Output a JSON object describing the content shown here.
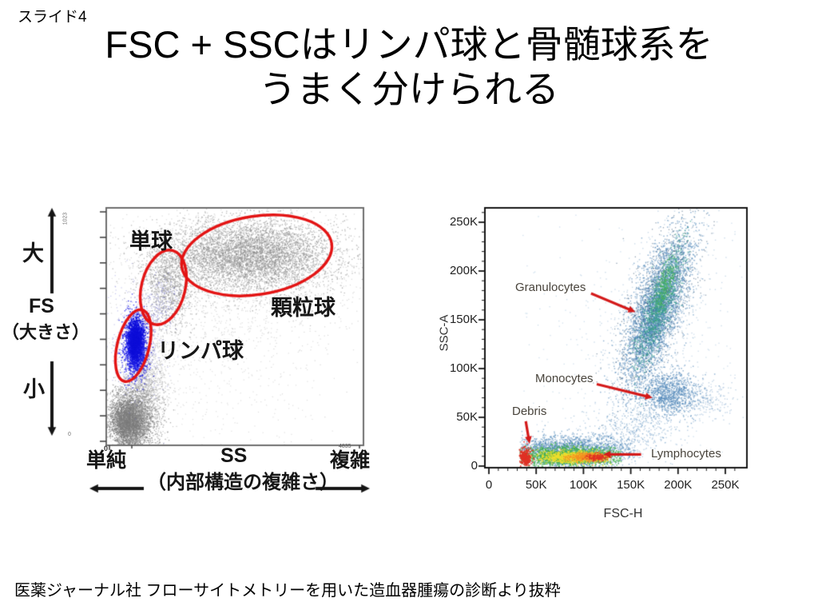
{
  "slide": {
    "label": "スライド4",
    "title_line1": "FSC + SSCはリンパ球と骨髄球系を",
    "title_line2": "うまく分けられる",
    "caption": "医薬ジャーナル社 フローサイトメトリーを用いた造血器腫瘍の診断より抜粋"
  },
  "colors": {
    "ellipse_red": "#e31414",
    "annotation_red": "#d41a1a",
    "lymphocyte_blue": "#1616ee",
    "dot_gray": "#8c8c8c",
    "scatter_blue": "#4e86b8",
    "density_green": "#44b14e",
    "density_yellow": "#f0de2c",
    "density_red": "#e03024"
  },
  "chart_data": [
    {
      "type": "scatter",
      "id": "fs-ss",
      "xlabel": "SS",
      "x_sub_label": "（内部構造の複雑さ）",
      "x_left_label": "単純",
      "x_right_label": "複雑",
      "ylabel": "FS",
      "y_sub_label": "（大きさ）",
      "y_top_label": "大",
      "y_bottom_label": "小",
      "x_min_label": "0",
      "x_max_label": "4835",
      "y_min_label": "0",
      "y_max_label": "1023",
      "xlim": [
        0,
        1
      ],
      "ylim": [
        0,
        1
      ],
      "grid": false,
      "ellipses": [
        {
          "label": "単球",
          "cx": 0.222,
          "cy": 0.665,
          "rx": 0.085,
          "ry": 0.16,
          "rot": 14
        },
        {
          "label": "顆粒球",
          "cx": 0.585,
          "cy": 0.8,
          "rx": 0.295,
          "ry": 0.165,
          "rot": -9
        },
        {
          "label": "リンパ球",
          "cx": 0.105,
          "cy": 0.42,
          "rx": 0.062,
          "ry": 0.155,
          "rot": 14
        }
      ],
      "clusters": [
        {
          "name": "background-noise",
          "cx": 0.33,
          "cy": 0.38,
          "sx": 0.26,
          "sy": 0.27,
          "n": 800,
          "color": "#b5b5b5",
          "size": 1.2,
          "alpha": 0.45
        },
        {
          "name": "granulocytes-halo",
          "cx": 0.55,
          "cy": 0.72,
          "sx": 0.27,
          "sy": 0.17,
          "n": 1600,
          "color": "#a8a8a8",
          "size": 1.2,
          "alpha": 0.45
        },
        {
          "name": "granulocytes",
          "cx": 0.56,
          "cy": 0.8,
          "sx": 0.165,
          "sy": 0.075,
          "n": 5200,
          "color": "#8c8c8c",
          "size": 1.3,
          "alpha": 0.6
        },
        {
          "name": "monocytes",
          "cx": 0.24,
          "cy": 0.68,
          "sx": 0.05,
          "sy": 0.095,
          "n": 1100,
          "color": "#909090",
          "size": 1.3,
          "alpha": 0.6
        },
        {
          "name": "debris",
          "cx": 0.1,
          "cy": 0.115,
          "sx": 0.05,
          "sy": 0.07,
          "n": 2400,
          "color": "#8f8f8f",
          "size": 1.3,
          "alpha": 0.75
        },
        {
          "name": "debris-core",
          "cx": 0.085,
          "cy": 0.095,
          "sx": 0.032,
          "sy": 0.045,
          "n": 1400,
          "color": "#7c7c7c",
          "size": 1.4,
          "alpha": 0.8
        },
        {
          "name": "debris-tail",
          "cx": 0.145,
          "cy": 0.24,
          "sx": 0.045,
          "sy": 0.09,
          "n": 700,
          "color": "#9a9a9a",
          "size": 1.2,
          "alpha": 0.5
        },
        {
          "name": "mid-column",
          "cx": 0.16,
          "cy": 0.3,
          "sx": 0.04,
          "sy": 0.12,
          "n": 500,
          "color": "#9a9a9a",
          "size": 1.2,
          "alpha": 0.5
        },
        {
          "name": "lymph-fringe",
          "cx": 0.125,
          "cy": 0.43,
          "sx": 0.05,
          "sy": 0.105,
          "n": 700,
          "color": "#6a6ad0",
          "size": 1.2,
          "alpha": 0.4
        },
        {
          "name": "mono-blue-specks",
          "cx": 0.21,
          "cy": 0.6,
          "sx": 0.035,
          "sy": 0.06,
          "n": 150,
          "color": "#6a6acc",
          "size": 1.2,
          "alpha": 0.5
        },
        {
          "name": "lymphocytes",
          "cx": 0.115,
          "cy": 0.42,
          "sx": 0.021,
          "sy": 0.062,
          "n": 2200,
          "color": "#2020e8",
          "size": 1.4,
          "alpha": 0.8
        },
        {
          "name": "lymphocytes-core",
          "cx": 0.114,
          "cy": 0.44,
          "sx": 0.013,
          "sy": 0.042,
          "n": 1000,
          "color": "#0d0dd8",
          "size": 1.5,
          "alpha": 0.9
        }
      ]
    },
    {
      "type": "scatter",
      "id": "fsc-ssc",
      "xlabel": "FSC-H",
      "ylabel": "SSC-A",
      "x_tick_values": [
        0,
        50,
        100,
        150,
        200,
        250
      ],
      "x_tick_labels": [
        "0",
        "50K",
        "100K",
        "150K",
        "200K",
        "250K"
      ],
      "y_tick_values": [
        0,
        50,
        100,
        150,
        200,
        250
      ],
      "y_tick_labels": [
        "0",
        "50K",
        "100K",
        "150K",
        "200K",
        "250K"
      ],
      "xlim": [
        0,
        273
      ],
      "ylim": [
        0,
        266
      ],
      "grid": false,
      "annotations": [
        {
          "text": "Granulocytes",
          "arrow": {
            "from": [
              108,
              177
            ],
            "to": [
              155,
              158
            ]
          }
        },
        {
          "text": "Monocytes",
          "arrow": {
            "from": [
              114,
              84
            ],
            "to": [
              173,
              70
            ]
          }
        },
        {
          "text": "Debris",
          "arrow": {
            "from": [
              39,
              46
            ],
            "to": [
              43,
              23
            ]
          }
        },
        {
          "text": "Lymphocytes",
          "arrow": {
            "from": [
              161,
              12
            ],
            "to": [
              121,
              12
            ]
          }
        }
      ],
      "clusters": [
        {
          "name": "sparse-noise",
          "cx": 150,
          "cy": 95,
          "sx": 75,
          "sy": 75,
          "n": 450,
          "color": "#85abce",
          "size": 1.4,
          "alpha": 0.35,
          "clipx": [
            36,
            268
          ],
          "clipy": [
            2,
            258
          ]
        },
        {
          "name": "granulocytes-halo",
          "cx": 181,
          "cy": 160,
          "sx": 25,
          "sy": 48,
          "n": 800,
          "color": "#7da4c9",
          "size": 1.4,
          "alpha": 0.4,
          "slant": 0.3
        },
        {
          "name": "granulocytes",
          "cx": 178,
          "cy": 160,
          "sx": 12.5,
          "sy": 38,
          "n": 3600,
          "color": "#4e86b8",
          "size": 1.5,
          "alpha": 0.6,
          "slant": 0.32
        },
        {
          "name": "granulocytes-dark",
          "cx": 178,
          "cy": 165,
          "sx": 16,
          "sy": 45,
          "n": 800,
          "color": "#3a5a77",
          "size": 1.3,
          "alpha": 0.55,
          "slant": 0.32
        },
        {
          "name": "granulocytes-core",
          "cx": 181,
          "cy": 165,
          "sx": 7,
          "sy": 30,
          "n": 900,
          "color": "#35a18c",
          "size": 1.5,
          "alpha": 0.65,
          "slant": 0.32
        },
        {
          "name": "granulocytes-core2",
          "cx": 186,
          "cy": 185,
          "sx": 4.5,
          "sy": 14,
          "n": 260,
          "color": "#48b05a",
          "size": 1.5,
          "alpha": 0.7,
          "slant": 0.3
        },
        {
          "name": "bridge",
          "cx": 155,
          "cy": 38,
          "sx": 22,
          "sy": 16,
          "n": 500,
          "color": "#5b8fbe",
          "size": 1.4,
          "alpha": 0.4
        },
        {
          "name": "monocytes",
          "cx": 190,
          "cy": 74,
          "sx": 15,
          "sy": 11,
          "n": 950,
          "color": "#4e86b8",
          "size": 1.5,
          "alpha": 0.6
        },
        {
          "name": "monocytes-right",
          "cx": 225,
          "cy": 70,
          "sx": 17,
          "sy": 10,
          "n": 280,
          "color": "#7da4c9",
          "size": 1.4,
          "alpha": 0.45
        },
        {
          "name": "lymphocyte-band-blue",
          "cx": 85,
          "cy": 15,
          "sx": 33,
          "sy": 8,
          "n": 2300,
          "color": "#4e86b8",
          "size": 1.5,
          "alpha": 0.55,
          "clipx": [
            33,
            155
          ]
        },
        {
          "name": "lymphocyte-band-green",
          "cx": 85,
          "cy": 10,
          "sx": 28,
          "sy": 4.6,
          "n": 1800,
          "color": "#44b14e",
          "size": 1.5,
          "alpha": 0.8,
          "clipx": [
            33,
            140
          ]
        },
        {
          "name": "lymphocyte-band-yellow",
          "cx": 90,
          "cy": 9,
          "sx": 19,
          "sy": 3,
          "n": 900,
          "color": "#f0de2c",
          "size": 1.5,
          "alpha": 0.85,
          "clipx": [
            40,
            132
          ]
        },
        {
          "name": "lymphocyte-band-orange",
          "cx": 103,
          "cy": 9,
          "sx": 10,
          "sy": 2.2,
          "n": 380,
          "color": "#f59122",
          "size": 1.5,
          "alpha": 0.85
        },
        {
          "name": "debris-hot-red",
          "cx": 38,
          "cy": 9,
          "sx": 3.5,
          "sy": 4.5,
          "n": 300,
          "color": "#e03024",
          "size": 1.6,
          "alpha": 0.9,
          "clipx": [
            32,
            52
          ]
        },
        {
          "name": "band-red2",
          "cx": 114,
          "cy": 9,
          "sx": 6,
          "sy": 1.8,
          "n": 160,
          "color": "#e03024",
          "size": 1.5,
          "alpha": 0.85
        }
      ]
    }
  ]
}
